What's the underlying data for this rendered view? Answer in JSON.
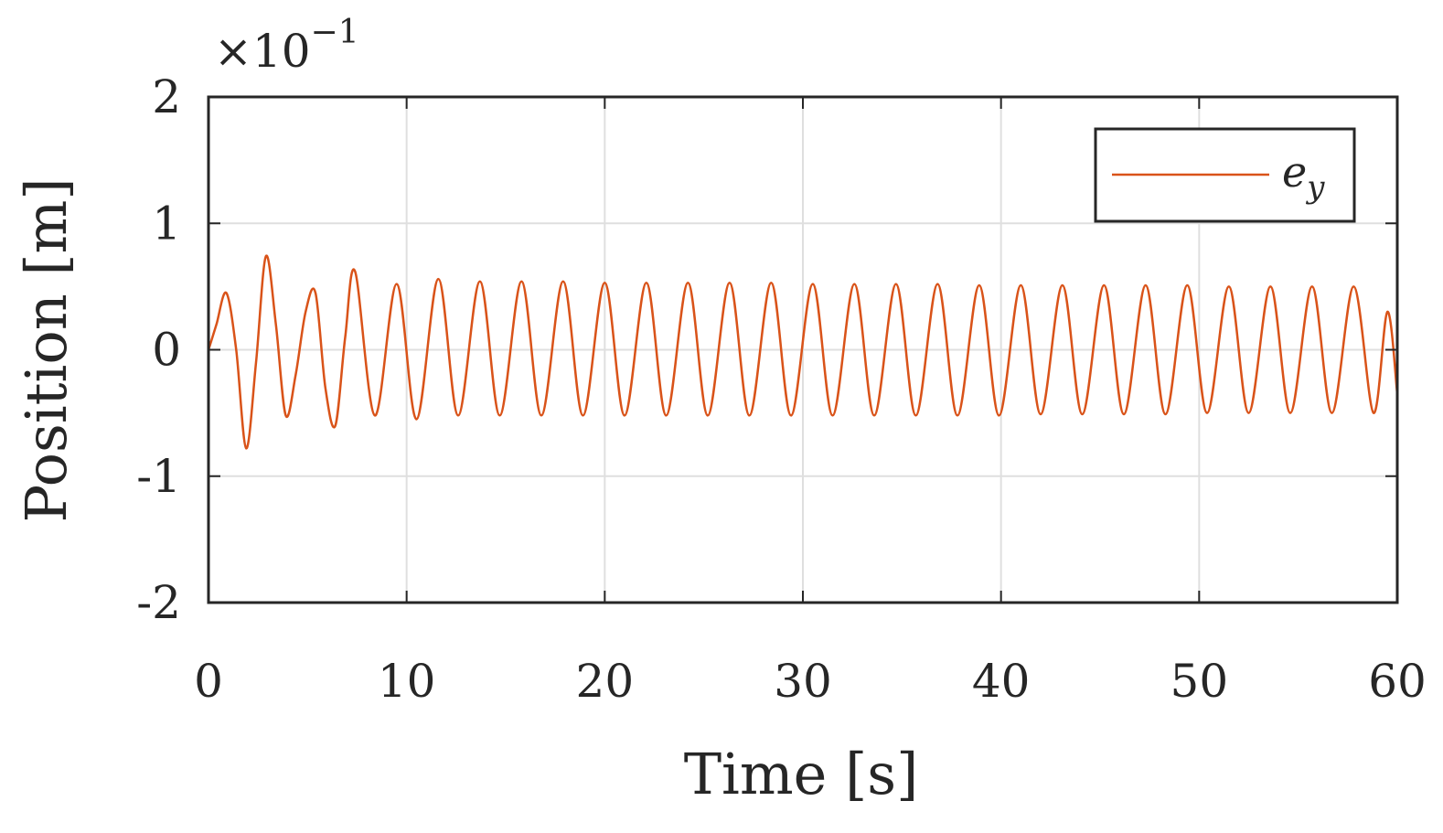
{
  "chart_data": {
    "type": "line",
    "xlabel": "Time [s]",
    "ylabel": "Position [m]",
    "y_exponent_base": "×10",
    "y_exponent_power": "−1",
    "xlim": [
      0,
      60
    ],
    "ylim": [
      -2,
      2
    ],
    "x_ticks": [
      0,
      10,
      20,
      30,
      40,
      50,
      60
    ],
    "y_ticks": [
      -2,
      -1,
      0,
      1,
      2
    ],
    "x_tick_labels": [
      "0",
      "10",
      "20",
      "30",
      "40",
      "50",
      "60"
    ],
    "y_tick_labels": [
      "-2",
      "-1",
      "0",
      "1",
      "2"
    ],
    "grid": true,
    "legend_position": "top-right",
    "series": [
      {
        "name": "e_y",
        "legend_label": "e",
        "legend_subscript": "y",
        "color": "#D95319",
        "x": [
          0,
          0.1,
          0.4,
          0.9,
          1.4,
          1.9,
          2.4,
          2.9,
          3.4,
          3.9,
          4.4,
          4.9,
          5.4,
          5.9,
          6.4,
          6.9,
          7.4,
          8.4,
          9.5,
          10.5,
          11.6,
          12.6,
          13.7,
          14.7,
          15.8,
          16.8,
          17.9,
          18.9,
          20.0,
          21.0,
          22.1,
          23.1,
          24.2,
          25.2,
          26.3,
          27.3,
          28.4,
          29.4,
          30.5,
          31.5,
          32.6,
          33.6,
          34.7,
          35.7,
          36.8,
          37.8,
          38.9,
          39.9,
          41.0,
          42.0,
          43.1,
          44.1,
          45.2,
          46.2,
          47.3,
          48.3,
          49.4,
          50.4,
          51.5,
          52.5,
          53.6,
          54.6,
          55.7,
          56.7,
          57.8,
          58.8,
          59.5,
          60.0
        ],
        "y": [
          0,
          0.05,
          0.2,
          0.45,
          0.0,
          -0.78,
          -0.1,
          0.74,
          0.2,
          -0.52,
          -0.2,
          0.3,
          0.45,
          -0.3,
          -0.6,
          0.1,
          0.62,
          -0.52,
          0.52,
          -0.55,
          0.56,
          -0.52,
          0.54,
          -0.52,
          0.54,
          -0.52,
          0.54,
          -0.52,
          0.53,
          -0.52,
          0.53,
          -0.52,
          0.53,
          -0.52,
          0.53,
          -0.52,
          0.53,
          -0.52,
          0.52,
          -0.52,
          0.52,
          -0.52,
          0.52,
          -0.52,
          0.52,
          -0.52,
          0.51,
          -0.52,
          0.51,
          -0.51,
          0.51,
          -0.51,
          0.51,
          -0.51,
          0.51,
          -0.51,
          0.51,
          -0.5,
          0.5,
          -0.5,
          0.5,
          -0.5,
          0.5,
          -0.5,
          0.5,
          -0.5,
          0.3,
          -0.35
        ]
      }
    ]
  }
}
